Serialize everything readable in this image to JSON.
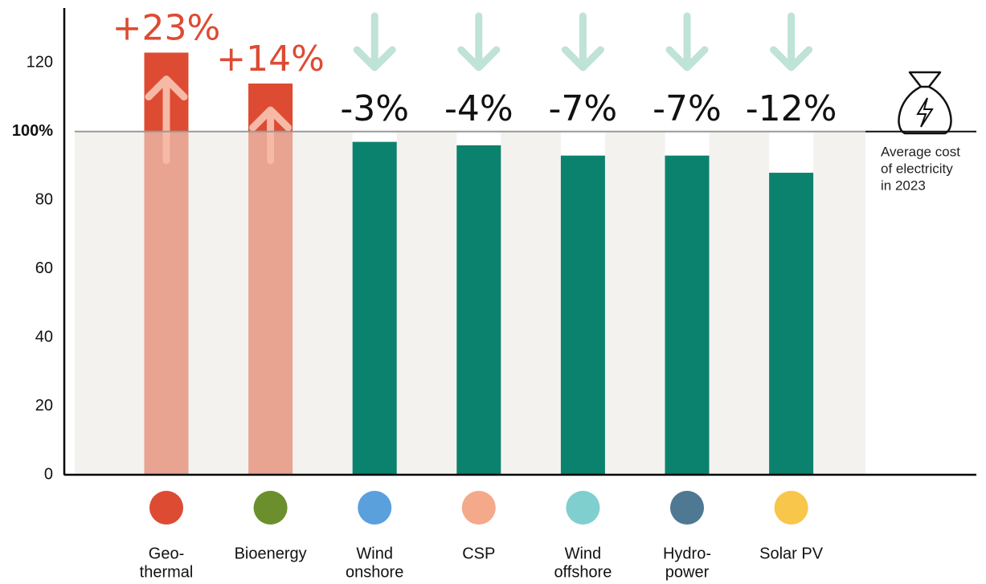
{
  "chart_data": {
    "type": "bar",
    "categories": [
      [
        "Geo-",
        "thermal"
      ],
      [
        "Bioenergy"
      ],
      [
        "Wind",
        "onshore"
      ],
      [
        "CSP"
      ],
      [
        "Wind",
        "offshore"
      ],
      [
        "Hydro-",
        "power"
      ],
      [
        "Solar PV"
      ]
    ],
    "values": [
      123,
      114,
      97,
      96,
      93,
      93,
      88
    ],
    "value_labels": [
      "+23%",
      "+14%",
      "-3%",
      "-4%",
      "-7%",
      "-7%",
      "-12%"
    ],
    "colors": [
      "#dd4b33",
      "#dd4b33",
      "#0b826e",
      "#0b826e",
      "#0b826e",
      "#0b826e",
      "#0b826e"
    ],
    "ylim": [
      0,
      136
    ],
    "yticks": [
      0,
      20,
      40,
      60,
      80,
      {
        "value": 100,
        "label": "100%"
      },
      120
    ],
    "reference": {
      "value": 100,
      "annotation": [
        "Average cost",
        "of electricity",
        "in 2023"
      ]
    }
  }
}
